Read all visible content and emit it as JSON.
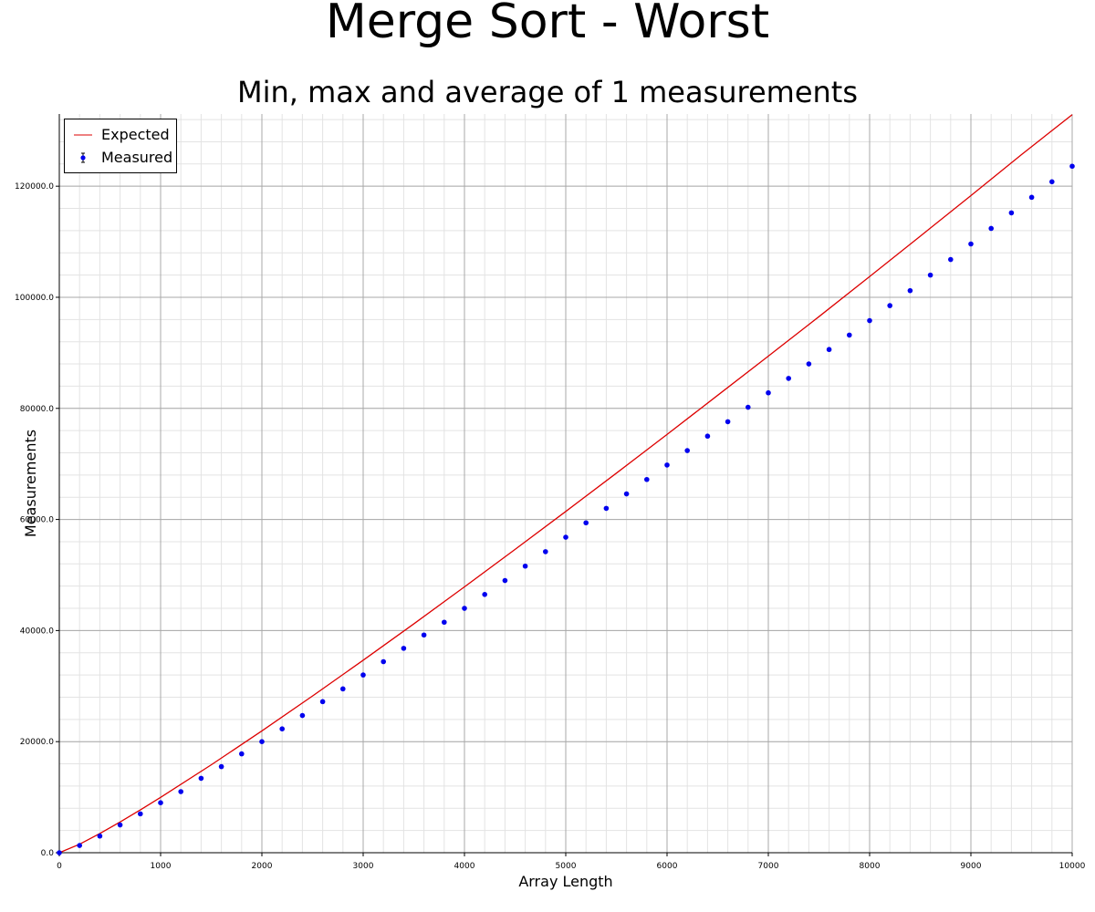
{
  "chart_data": {
    "type": "scatter",
    "title": "Merge Sort - Worst",
    "subtitle": "Min, max and average of 1 measurements",
    "xlabel": "Array Length",
    "ylabel": "Measurements",
    "xlim": [
      0,
      10000
    ],
    "ylim": [
      0,
      133000
    ],
    "x_ticks": [
      0,
      1000,
      2000,
      3000,
      4000,
      5000,
      6000,
      7000,
      8000,
      9000,
      10000
    ],
    "x_tick_labels": [
      "0",
      "1000",
      "2000",
      "3000",
      "4000",
      "5000",
      "6000",
      "7000",
      "8000",
      "9000",
      "10000"
    ],
    "y_ticks": [
      0,
      20000,
      40000,
      60000,
      80000,
      100000,
      120000
    ],
    "y_tick_labels": [
      "0.0",
      "20000.0",
      "40000.0",
      "60000.0",
      "80000.0",
      "100000.0",
      "120000.0"
    ],
    "grid": true,
    "legend_position": "top-left",
    "series": [
      {
        "name": "Expected",
        "kind": "line",
        "color": "#dd0000",
        "formula": "n*log2(n)",
        "x": [
          0,
          200,
          400,
          600,
          800,
          1000,
          1500,
          2000,
          2500,
          3000,
          3500,
          4000,
          4500,
          5000,
          5500,
          6000,
          6500,
          7000,
          7500,
          8000,
          8500,
          9000,
          9500,
          10000
        ],
        "y": [
          0,
          1529,
          3458,
          5537,
          7715,
          9966,
          15826,
          21932,
          28220,
          34652,
          41203,
          47863,
          54615,
          61439,
          68336,
          75304,
          82353,
          89412,
          96518,
          103728,
          111000,
          118300,
          125700,
          132877
        ]
      },
      {
        "name": "Measured",
        "kind": "points",
        "color": "#0000ee",
        "x": [
          0,
          200,
          400,
          600,
          800,
          1000,
          1200,
          1400,
          1600,
          1800,
          2000,
          2200,
          2400,
          2600,
          2800,
          3000,
          3200,
          3400,
          3600,
          3800,
          4000,
          4200,
          4400,
          4600,
          4800,
          5000,
          5200,
          5400,
          5600,
          5800,
          6000,
          6200,
          6400,
          6600,
          6800,
          7000,
          7200,
          7400,
          7600,
          7800,
          8000,
          8200,
          8400,
          8600,
          8800,
          9000,
          9200,
          9400,
          9600,
          9800,
          10000
        ],
        "y": [
          0,
          1300,
          3000,
          5000,
          7000,
          9000,
          11000,
          13400,
          15500,
          17800,
          20000,
          22300,
          24700,
          27200,
          29500,
          32000,
          34400,
          36800,
          39200,
          41500,
          44000,
          46500,
          49000,
          51600,
          54200,
          56800,
          59400,
          62000,
          64600,
          67200,
          69800,
          72400,
          75000,
          77600,
          80200,
          82800,
          85400,
          88000,
          90600,
          93200,
          95800,
          98500,
          101200,
          104000,
          106800,
          109600,
          112400,
          115200,
          118000,
          120800,
          123600
        ]
      }
    ]
  }
}
